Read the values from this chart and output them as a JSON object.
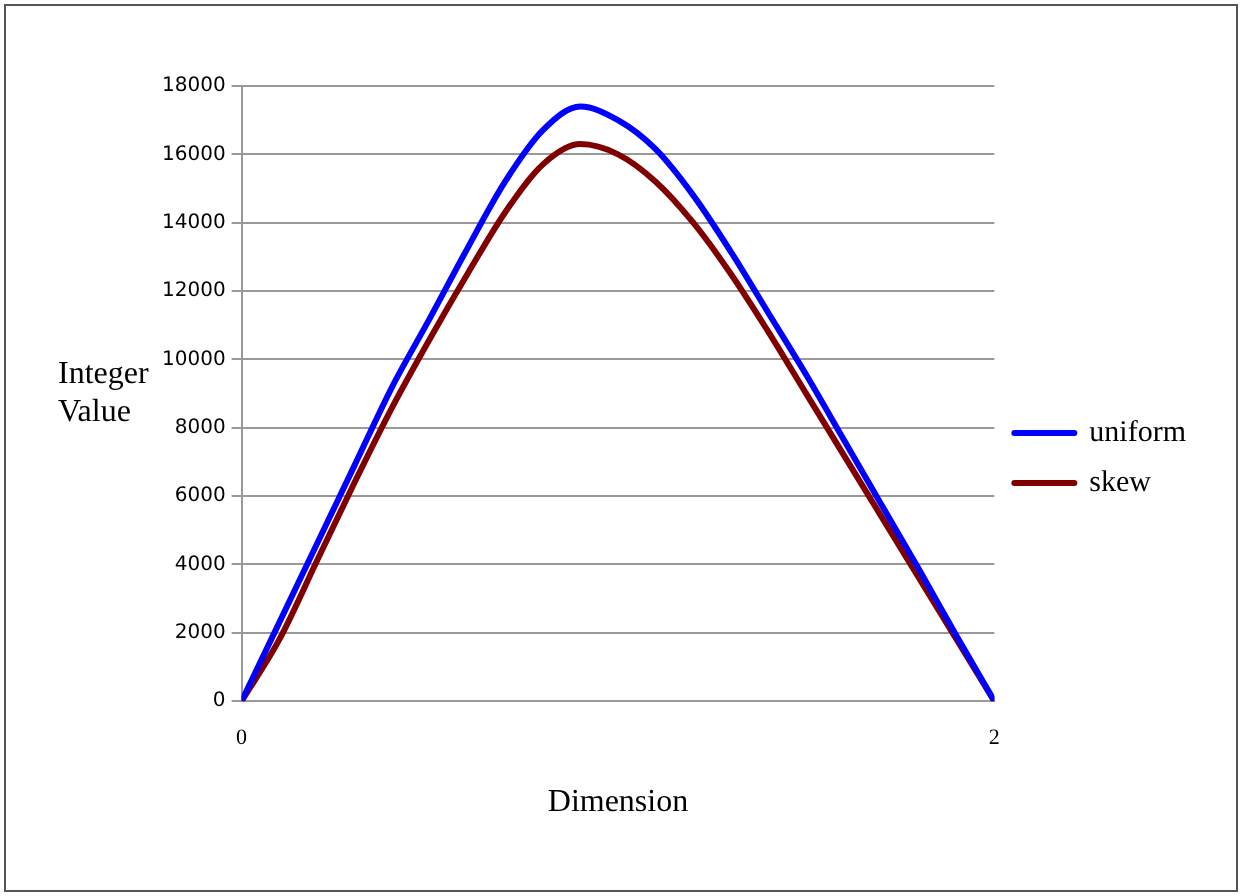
{
  "chart_data": {
    "type": "line",
    "xlabel": "Dimension",
    "ylabel": "Integer Value",
    "x": [
      0,
      0.1,
      0.2,
      0.3,
      0.4,
      0.5,
      0.6,
      0.7,
      0.8,
      0.9,
      1.0,
      1.1,
      1.2,
      1.3,
      1.4,
      1.5,
      1.6,
      1.7,
      1.8,
      1.9,
      2.0
    ],
    "series": [
      {
        "name": "uniform",
        "color": "#0000ff",
        "values": [
          0,
          2300,
          4600,
          6900,
          9200,
          11200,
          13250,
          15200,
          16700,
          17400,
          17000,
          16150,
          14800,
          13150,
          11350,
          9550,
          7650,
          5750,
          3850,
          1900,
          0
        ]
      },
      {
        "name": "skew",
        "color": "#800000",
        "values": [
          0,
          1800,
          4100,
          6400,
          8600,
          10600,
          12500,
          14300,
          15700,
          16300,
          16000,
          15200,
          14000,
          12500,
          10800,
          9000,
          7200,
          5400,
          3600,
          1800,
          0
        ]
      }
    ],
    "xlim": [
      0,
      2
    ],
    "xticks": [
      0,
      2
    ],
    "ylim": [
      0,
      18000
    ],
    "yticks": [
      0,
      2000,
      4000,
      6000,
      8000,
      10000,
      12000,
      14000,
      16000,
      18000
    ],
    "grid": "y",
    "legend": "right",
    "marker": "none",
    "line_style": "solid"
  }
}
